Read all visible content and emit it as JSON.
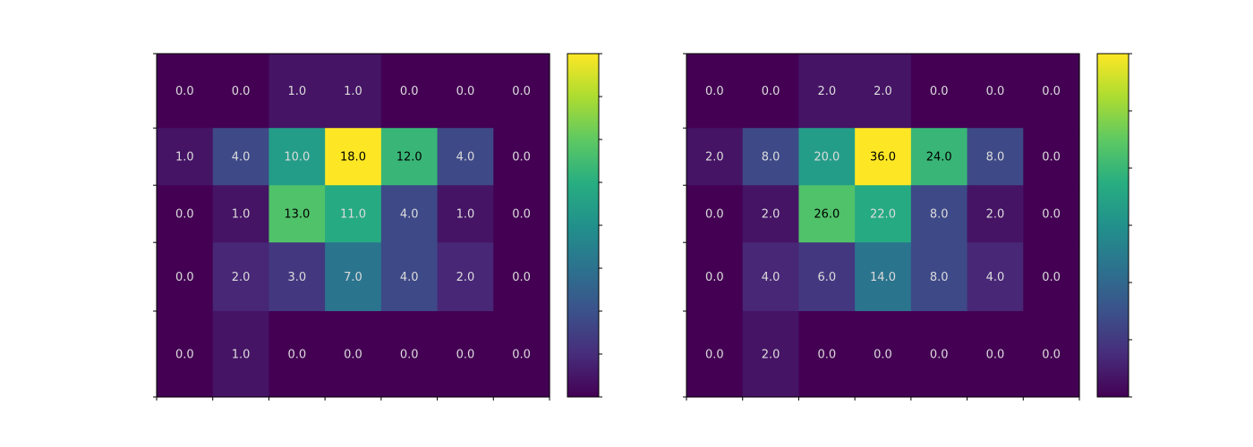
{
  "chart_data": [
    {
      "type": "heatmap",
      "title": "",
      "xlabel": "",
      "ylabel": "",
      "colormap": "viridis",
      "value_range": [
        0,
        18
      ],
      "colorbar_ticks": 9,
      "x_edges": [
        0,
        1,
        2,
        3,
        4,
        5,
        6,
        7
      ],
      "y_edges": [
        0,
        1.3,
        2.3,
        3.3,
        4.5,
        6.0
      ],
      "grid": false,
      "cell_labels": [
        [
          "0.0",
          "0.0",
          "1.0",
          "1.0",
          "0.0",
          "0.0",
          "0.0"
        ],
        [
          "1.0",
          "4.0",
          "10.0",
          "18.0",
          "12.0",
          "4.0",
          "0.0"
        ],
        [
          "0.0",
          "1.0",
          "13.0",
          "11.0",
          "4.0",
          "1.0",
          "0.0"
        ],
        [
          "0.0",
          "2.0",
          "3.0",
          "7.0",
          "4.0",
          "2.0",
          "0.0"
        ],
        [
          "0.0",
          "1.0",
          "0.0",
          "0.0",
          "0.0",
          "0.0",
          "0.0"
        ]
      ],
      "values": [
        [
          0,
          0,
          1,
          1,
          0,
          0,
          0
        ],
        [
          1,
          4,
          10,
          18,
          12,
          4,
          0
        ],
        [
          0,
          1,
          13,
          11,
          4,
          1,
          0
        ],
        [
          0,
          2,
          3,
          7,
          4,
          2,
          0
        ],
        [
          0,
          1,
          0,
          0,
          0,
          0,
          0
        ]
      ]
    },
    {
      "type": "heatmap",
      "title": "",
      "xlabel": "",
      "ylabel": "",
      "colormap": "viridis",
      "value_range": [
        0,
        36
      ],
      "colorbar_ticks": 7,
      "x_edges": [
        0,
        1,
        2,
        3,
        4,
        5,
        6,
        7
      ],
      "y_edges": [
        0,
        1.3,
        2.3,
        3.3,
        4.5,
        6.0
      ],
      "grid": false,
      "cell_labels": [
        [
          "0.0",
          "0.0",
          "2.0",
          "2.0",
          "0.0",
          "0.0",
          "0.0"
        ],
        [
          "2.0",
          "8.0",
          "20.0",
          "36.0",
          "24.0",
          "8.0",
          "0.0"
        ],
        [
          "0.0",
          "2.0",
          "26.0",
          "22.0",
          "8.0",
          "2.0",
          "0.0"
        ],
        [
          "0.0",
          "4.0",
          "6.0",
          "14.0",
          "8.0",
          "4.0",
          "0.0"
        ],
        [
          "0.0",
          "2.0",
          "0.0",
          "0.0",
          "0.0",
          "0.0",
          "0.0"
        ]
      ],
      "values": [
        [
          0,
          0,
          2,
          2,
          0,
          0,
          0
        ],
        [
          2,
          8,
          20,
          36,
          24,
          8,
          0
        ],
        [
          0,
          2,
          26,
          22,
          8,
          2,
          0
        ],
        [
          0,
          4,
          6,
          14,
          8,
          4,
          0
        ],
        [
          0,
          2,
          0,
          0,
          0,
          0,
          0
        ]
      ]
    }
  ]
}
